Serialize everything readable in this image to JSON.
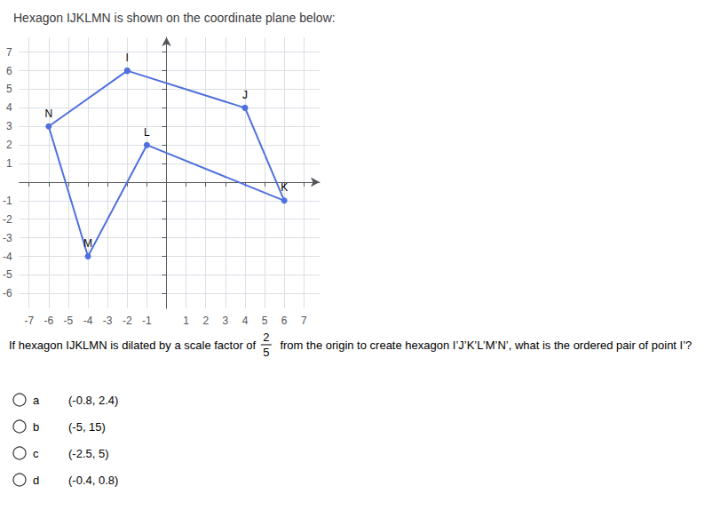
{
  "chart_data": {
    "type": "line",
    "title": "Hexagon IJKLMN is shown on the coordinate plane below:",
    "x": [
      -2,
      4,
      6,
      -1,
      -4,
      -6,
      -2
    ],
    "values": [
      6,
      4,
      -1,
      2,
      -4,
      3,
      6
    ],
    "point_labels": [
      "I",
      "J",
      "K",
      "L",
      "M",
      "N",
      null
    ],
    "marker": "circle",
    "xlim": [
      -7.5,
      7.8
    ],
    "ylim": [
      -6.8,
      7.8
    ],
    "xticks": [
      -7,
      -6,
      -5,
      -4,
      -3,
      -2,
      -1,
      1,
      2,
      3,
      4,
      5,
      6,
      7
    ],
    "yticks": [
      -6,
      -5,
      -4,
      -3,
      -2,
      -1,
      1,
      2,
      3,
      4,
      5,
      6,
      7
    ],
    "grid": true,
    "question": {
      "before": "If hexagon IJKLMN is dilated by a scale factor of ",
      "numerator": "2",
      "denominator": "5",
      "after": " from the origin to create hexagon I’J’K’L’M’N’, what is the ordered pair of point I’?"
    },
    "choices": [
      {
        "letter": "a",
        "text": "(-0.8, 2.4)"
      },
      {
        "letter": "b",
        "text": "(-5, 15)"
      },
      {
        "letter": "c",
        "text": "(-2.5, 5)"
      },
      {
        "letter": "d",
        "text": "(-0.4, 0.8)"
      }
    ]
  }
}
